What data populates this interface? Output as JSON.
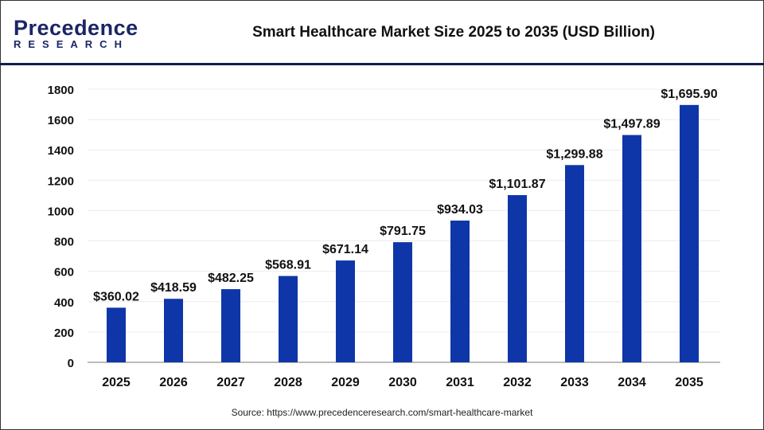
{
  "logo": {
    "line1": "Precedence",
    "line2": "RESEARCH"
  },
  "title": "Smart Healthcare Market Size 2025 to 2035 (USD Billion)",
  "source": "Source: https://www.precedenceresearch.com/smart-healthcare-market",
  "chart_data": {
    "type": "bar",
    "title": "Smart Healthcare Market Size 2025 to 2035 (USD Billion)",
    "categories": [
      "2025",
      "2026",
      "2027",
      "2028",
      "2029",
      "2030",
      "2031",
      "2032",
      "2033",
      "2034",
      "2035"
    ],
    "values": [
      360.02,
      418.59,
      482.25,
      568.91,
      671.14,
      791.75,
      934.03,
      1101.87,
      1299.88,
      1497.89,
      1695.9
    ],
    "labels": [
      "$360.02",
      "$418.59",
      "$482.25",
      "$568.91",
      "$671.14",
      "$791.75",
      "$934.03",
      "$1,101.87",
      "$1,299.88",
      "$1,497.89",
      "$1,695.90"
    ],
    "yticks": [
      "0",
      "200",
      "400",
      "600",
      "800",
      "1000",
      "1200",
      "1400",
      "1600",
      "1800"
    ],
    "ylim": [
      0,
      1800
    ],
    "grid": true,
    "bar_color": "#0e36a8"
  }
}
